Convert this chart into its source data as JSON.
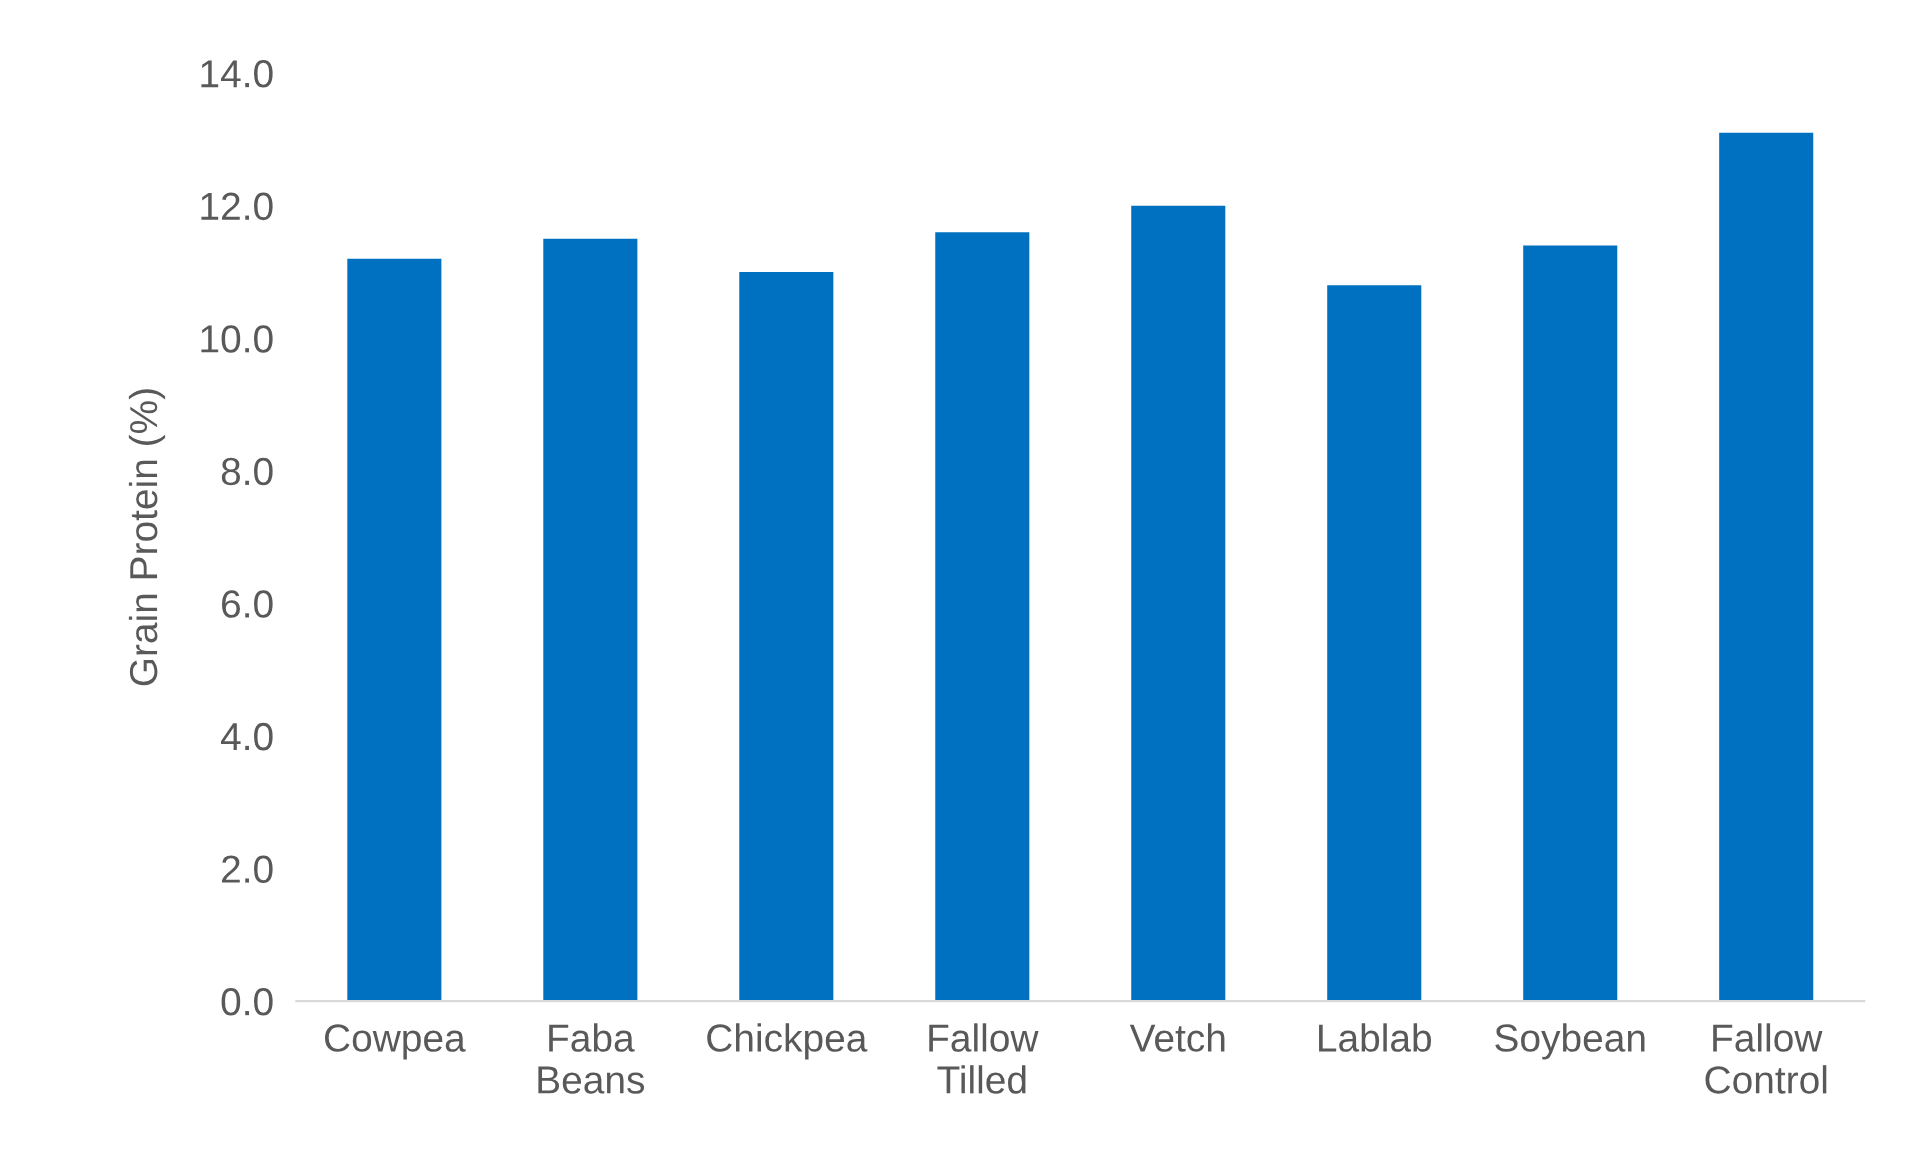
{
  "chart_data": {
    "type": "bar",
    "ylabel": "Grain Protein (%)",
    "categories": [
      "Cowpea",
      "Faba\nBeans",
      "Chickpea",
      "Fallow\nTilled",
      "Vetch",
      "Lablab",
      "Soybean",
      "Fallow\nControl"
    ],
    "values": [
      11.2,
      11.5,
      11.0,
      11.6,
      12.0,
      10.8,
      11.4,
      13.1
    ],
    "color": "#0070c0",
    "ylim": [
      0,
      14
    ],
    "yticks": [
      {
        "value": 0,
        "label": "0.0"
      },
      {
        "value": 2,
        "label": "2.0"
      },
      {
        "value": 4,
        "label": "4.0"
      },
      {
        "value": 6,
        "label": "6.0"
      },
      {
        "value": 8,
        "label": "8.0"
      },
      {
        "value": 10,
        "label": "10.0"
      },
      {
        "value": 12,
        "label": "12.0"
      },
      {
        "value": 14,
        "label": "14.0"
      }
    ],
    "grid": false
  }
}
